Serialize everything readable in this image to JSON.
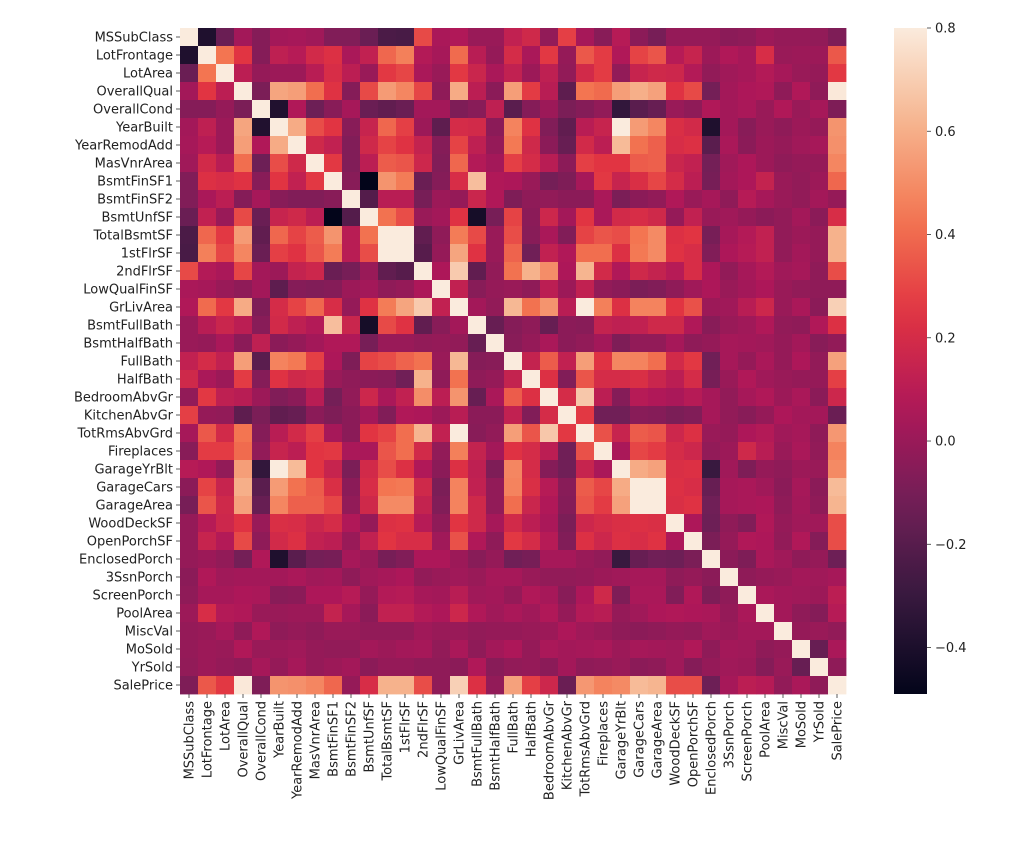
{
  "chart_data": {
    "type": "heatmap",
    "title": "",
    "xlabel": "",
    "ylabel": "",
    "labels": [
      "MSSubClass",
      "LotFrontage",
      "LotArea",
      "OverallQual",
      "OverallCond",
      "YearBuilt",
      "YearRemodAdd",
      "MasVnrArea",
      "BsmtFinSF1",
      "BsmtFinSF2",
      "BsmtUnfSF",
      "TotalBsmtSF",
      "1stFlrSF",
      "2ndFlrSF",
      "LowQualFinSF",
      "GrLivArea",
      "BsmtFullBath",
      "BsmtHalfBath",
      "FullBath",
      "HalfBath",
      "BedroomAbvGr",
      "KitchenAbvGr",
      "TotRmsAbvGrd",
      "Fireplaces",
      "GarageYrBlt",
      "GarageCars",
      "GarageArea",
      "WoodDeckSF",
      "OpenPorchSF",
      "EnclosedPorch",
      "3SsnPorch",
      "ScreenPorch",
      "PoolArea",
      "MiscVal",
      "MoSold",
      "YrSold",
      "SalePrice"
    ],
    "diagonal": 1.0,
    "upper_triangle": [
      [
        -0.39,
        -0.14,
        0.03,
        -0.06,
        0.03,
        0.04,
        0.02,
        -0.07,
        -0.07,
        -0.14,
        -0.24,
        -0.25,
        0.31,
        0.05,
        0.07,
        0.0,
        0.0,
        0.13,
        0.18,
        -0.02,
        0.28,
        0.04,
        -0.05,
        0.09,
        -0.04,
        -0.1,
        -0.01,
        -0.01,
        -0.01,
        -0.04,
        -0.03,
        0.01,
        -0.01,
        -0.01,
        -0.02,
        -0.08
      ],
      [
        0.43,
        0.25,
        -0.06,
        0.12,
        0.09,
        0.19,
        0.23,
        0.05,
        0.13,
        0.39,
        0.46,
        0.08,
        0.04,
        0.4,
        0.1,
        -0.01,
        0.2,
        0.05,
        0.26,
        -0.01,
        0.35,
        0.27,
        0.07,
        0.29,
        0.34,
        0.09,
        0.15,
        0.01,
        0.07,
        0.04,
        0.21,
        0.0,
        0.01,
        0.01,
        0.35
      ],
      [
        0.11,
        -0.01,
        0.01,
        0.01,
        0.1,
        0.21,
        0.11,
        0.0,
        0.26,
        0.3,
        0.05,
        0.0,
        0.26,
        0.16,
        0.05,
        0.13,
        0.01,
        0.12,
        -0.02,
        0.19,
        0.27,
        -0.02,
        0.15,
        0.18,
        0.17,
        0.08,
        -0.02,
        0.02,
        0.04,
        0.08,
        0.04,
        0.0,
        -0.01,
        0.26
      ],
      [
        -0.09,
        0.57,
        0.55,
        0.41,
        0.24,
        -0.06,
        0.31,
        0.54,
        0.48,
        0.3,
        -0.03,
        0.59,
        0.11,
        -0.04,
        0.55,
        0.27,
        0.1,
        -0.18,
        0.43,
        0.4,
        0.55,
        0.6,
        0.56,
        0.24,
        0.31,
        -0.11,
        0.03,
        0.06,
        0.07,
        -0.03,
        0.07,
        -0.03,
        0.79
      ],
      [
        -0.38,
        0.07,
        -0.13,
        -0.05,
        0.04,
        -0.14,
        -0.17,
        -0.14,
        0.03,
        0.03,
        -0.08,
        -0.05,
        0.12,
        -0.19,
        -0.06,
        0.01,
        -0.09,
        -0.06,
        -0.02,
        -0.32,
        -0.19,
        -0.15,
        0.0,
        -0.03,
        0.07,
        0.03,
        0.05,
        0.0,
        0.07,
        0.0,
        0.04,
        -0.08
      ],
      [
        0.59,
        0.32,
        0.25,
        -0.05,
        0.15,
        0.39,
        0.28,
        0.01,
        -0.18,
        0.2,
        0.19,
        -0.04,
        0.47,
        0.24,
        -0.07,
        -0.17,
        0.1,
        0.15,
        0.83,
        0.54,
        0.48,
        0.22,
        0.19,
        -0.39,
        0.03,
        -0.05,
        0.0,
        -0.03,
        0.01,
        -0.01,
        0.52
      ],
      [
        0.18,
        0.13,
        -0.07,
        0.18,
        0.29,
        0.24,
        0.14,
        -0.06,
        0.29,
        0.12,
        -0.01,
        0.44,
        0.18,
        -0.04,
        -0.15,
        0.19,
        0.11,
        0.64,
        0.42,
        0.37,
        0.21,
        0.23,
        -0.19,
        0.05,
        -0.04,
        0.01,
        -0.01,
        0.02,
        0.04,
        0.51
      ],
      [
        0.26,
        -0.07,
        0.11,
        0.36,
        0.34,
        0.17,
        -0.07,
        0.39,
        0.08,
        0.03,
        0.28,
        0.2,
        0.1,
        -0.04,
        0.28,
        0.25,
        0.25,
        0.36,
        0.37,
        0.16,
        0.13,
        -0.11,
        0.02,
        0.06,
        0.01,
        -0.03,
        -0.01,
        -0.01,
        0.48
      ],
      [
        -0.05,
        -0.5,
        0.52,
        0.45,
        -0.14,
        -0.06,
        0.21,
        0.65,
        0.07,
        0.06,
        0.0,
        -0.11,
        -0.08,
        0.04,
        0.26,
        0.15,
        0.22,
        0.3,
        0.2,
        0.11,
        -0.1,
        0.03,
        0.06,
        0.14,
        0.0,
        -0.02,
        0.01,
        0.39
      ],
      [
        -0.21,
        0.1,
        0.1,
        -0.1,
        0.01,
        -0.01,
        0.16,
        0.07,
        -0.08,
        -0.03,
        -0.02,
        -0.04,
        -0.04,
        0.05,
        -0.09,
        -0.04,
        -0.02,
        0.07,
        0.0,
        0.04,
        -0.03,
        0.09,
        0.04,
        0.0,
        -0.02,
        0.03,
        -0.01
      ],
      [
        0.42,
        0.32,
        0.0,
        0.03,
        0.24,
        -0.42,
        -0.1,
        0.29,
        -0.04,
        0.17,
        0.03,
        0.25,
        0.05,
        0.19,
        0.21,
        0.18,
        -0.01,
        0.13,
        0.0,
        0.02,
        -0.01,
        -0.04,
        -0.02,
        0.03,
        -0.04,
        0.21
      ],
      [
        0.82,
        -0.17,
        -0.03,
        0.45,
        0.31,
        0.0,
        0.32,
        -0.05,
        0.05,
        -0.07,
        0.29,
        0.34,
        0.32,
        0.43,
        0.49,
        0.23,
        0.25,
        -0.1,
        0.04,
        0.08,
        0.13,
        -0.02,
        0.01,
        -0.01,
        0.61
      ],
      [
        -0.2,
        -0.01,
        0.57,
        0.24,
        0.0,
        0.38,
        -0.12,
        0.13,
        0.07,
        0.41,
        0.41,
        0.23,
        0.44,
        0.49,
        0.24,
        0.21,
        -0.07,
        0.06,
        0.09,
        0.13,
        -0.02,
        0.03,
        -0.01,
        0.61
      ],
      [
        0.06,
        0.69,
        -0.17,
        -0.02,
        0.42,
        0.61,
        0.5,
        0.06,
        0.62,
        0.19,
        0.07,
        0.18,
        0.14,
        0.09,
        0.21,
        0.06,
        -0.02,
        0.04,
        0.08,
        0.02,
        0.04,
        -0.03,
        0.32
      ],
      [
        0.13,
        -0.05,
        -0.01,
        0.0,
        -0.03,
        0.11,
        0.01,
        0.13,
        -0.02,
        -0.04,
        -0.09,
        -0.07,
        -0.03,
        0.02,
        0.06,
        0.0,
        0.03,
        0.06,
        0.0,
        -0.02,
        -0.03,
        -0.03
      ],
      [
        0.03,
        -0.02,
        0.63,
        0.42,
        0.52,
        0.1,
        0.83,
        0.46,
        0.23,
        0.47,
        0.47,
        0.25,
        0.33,
        0.01,
        0.02,
        0.1,
        0.17,
        0.0,
        0.05,
        -0.04,
        0.71
      ],
      [
        -0.15,
        -0.06,
        -0.03,
        -0.15,
        -0.04,
        -0.05,
        0.14,
        0.12,
        0.13,
        0.18,
        0.18,
        0.07,
        -0.05,
        0.0,
        0.02,
        0.07,
        -0.02,
        -0.03,
        0.07,
        0.23
      ],
      [
        -0.05,
        -0.01,
        0.05,
        -0.04,
        -0.02,
        0.03,
        -0.08,
        -0.02,
        -0.02,
        0.04,
        -0.03,
        -0.01,
        0.04,
        0.03,
        0.02,
        -0.01,
        0.03,
        -0.05,
        -0.02
      ],
      [
        0.14,
        0.36,
        0.13,
        0.55,
        0.24,
        0.48,
        0.47,
        0.41,
        0.19,
        0.26,
        -0.12,
        0.04,
        -0.01,
        0.05,
        -0.01,
        0.06,
        -0.02,
        0.56
      ],
      [
        0.23,
        -0.07,
        0.34,
        0.2,
        0.2,
        0.22,
        0.16,
        0.11,
        0.2,
        -0.1,
        0.0,
        0.07,
        0.02,
        0.0,
        -0.01,
        -0.01,
        0.28
      ],
      [
        0.2,
        0.68,
        0.11,
        -0.06,
        0.09,
        0.07,
        0.05,
        0.09,
        0.04,
        -0.02,
        0.04,
        0.07,
        0.01,
        0.05,
        -0.04,
        0.17
      ],
      [
        0.26,
        -0.12,
        -0.12,
        -0.05,
        -0.06,
        -0.09,
        -0.07,
        0.04,
        -0.02,
        -0.05,
        -0.01,
        0.06,
        0.03,
        0.03,
        -0.14
      ],
      [
        0.33,
        0.15,
        0.36,
        0.34,
        0.17,
        0.23,
        0.0,
        -0.01,
        0.06,
        0.08,
        0.02,
        0.04,
        -0.03,
        0.53
      ],
      [
        0.05,
        0.3,
        0.27,
        0.2,
        0.17,
        -0.02,
        0.01,
        0.18,
        0.1,
        0.0,
        0.05,
        -0.02,
        0.47
      ],
      [
        0.59,
        0.56,
        0.22,
        0.23,
        -0.3,
        0.02,
        -0.08,
        -0.01,
        -0.03,
        0.01,
        0.0,
        0.49
      ],
      [
        0.88,
        0.23,
        0.21,
        -0.15,
        0.04,
        0.05,
        0.02,
        -0.04,
        0.04,
        -0.04,
        0.64
      ],
      [
        0.22,
        0.24,
        -0.12,
        0.04,
        0.05,
        0.06,
        -0.03,
        0.03,
        -0.03,
        0.62
      ],
      [
        0.06,
        -0.13,
        -0.03,
        -0.07,
        0.07,
        -0.01,
        0.02,
        0.02,
        0.32
      ],
      [
        -0.09,
        -0.01,
        0.07,
        0.06,
        -0.02,
        0.07,
        -0.06,
        0.32
      ],
      [
        -0.04,
        -0.08,
        0.05,
        0.02,
        -0.03,
        -0.01,
        -0.13
      ],
      [
        -0.03,
        -0.01,
        0.0,
        0.03,
        0.02,
        0.04
      ],
      [
        0.05,
        0.03,
        0.02,
        0.01,
        0.11
      ],
      [
        0.03,
        -0.03,
        -0.06,
        0.09
      ],
      [
        -0.01,
        0.0,
        -0.02
      ],
      [
        -0.15,
        0.05
      ],
      [
        -0.03
      ],
      []
    ],
    "vmin": -0.49,
    "vmax": 0.8,
    "colormap": "rocket",
    "colorbar": {
      "ticks": [
        -0.4,
        -0.2,
        0.0,
        0.2,
        0.4,
        0.6,
        0.8
      ],
      "tick_labels": [
        "−0.4",
        "−0.2",
        "0.0",
        "0.2",
        "0.4",
        "0.6",
        "0.8"
      ],
      "placement": "right"
    },
    "colormap_stops": [
      "#03051A",
      "#36193E",
      "#701F57",
      "#AE1759",
      "#E13342",
      "#F37651",
      "#F6B48E",
      "#FAEBDD"
    ]
  }
}
